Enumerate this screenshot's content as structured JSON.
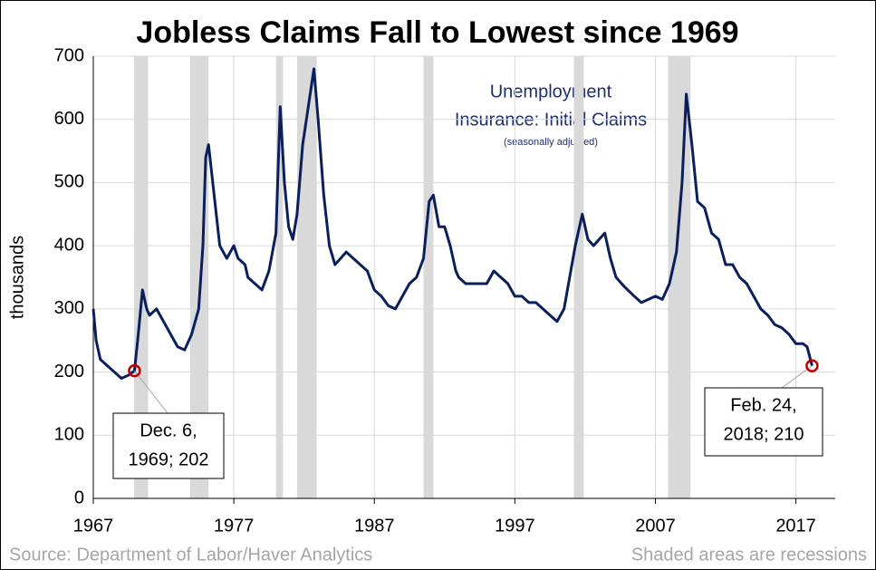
{
  "chart_data": {
    "type": "line",
    "title": "Jobless Claims Fall to Lowest since 1969",
    "ylabel": "thousands",
    "source": "Source: Department of Labor/Haver Analytics",
    "note": "Shaded areas are recessions",
    "series_label": [
      "Unemployment",
      "Insurance: Initial Claims"
    ],
    "series_note": "(seasonally adjusted)",
    "xlim": [
      1967,
      2019.8
    ],
    "ylim": [
      0,
      700
    ],
    "xticks": [
      1967,
      1977,
      1987,
      1997,
      2007,
      2017
    ],
    "yticks": [
      0,
      100,
      200,
      300,
      400,
      500,
      600,
      700
    ],
    "grid": true,
    "recessions": [
      [
        1969.9,
        1970.9
      ],
      [
        1973.9,
        1975.2
      ],
      [
        1980.0,
        1980.5
      ],
      [
        1981.5,
        1982.9
      ],
      [
        1990.5,
        1991.2
      ],
      [
        2001.2,
        2001.9
      ],
      [
        2007.9,
        2009.5
      ]
    ],
    "x": [
      1967.0,
      1967.2,
      1967.5,
      1968.0,
      1968.5,
      1969.0,
      1969.5,
      1969.93,
      1970.2,
      1970.5,
      1970.8,
      1971.0,
      1971.5,
      1972.0,
      1972.5,
      1973.0,
      1973.5,
      1974.0,
      1974.5,
      1974.8,
      1975.0,
      1975.2,
      1975.6,
      1976.0,
      1976.5,
      1977.0,
      1977.3,
      1977.8,
      1978.0,
      1978.5,
      1979.0,
      1979.5,
      1980.0,
      1980.3,
      1980.6,
      1980.9,
      1981.2,
      1981.5,
      1981.9,
      1982.3,
      1982.7,
      1983.0,
      1983.4,
      1983.8,
      1984.2,
      1984.6,
      1985.0,
      1985.5,
      1986.0,
      1986.5,
      1987.0,
      1987.5,
      1988.0,
      1988.5,
      1989.0,
      1989.5,
      1990.0,
      1990.5,
      1990.9,
      1991.2,
      1991.6,
      1992.0,
      1992.4,
      1992.8,
      1993.0,
      1993.5,
      1994.0,
      1994.5,
      1995.0,
      1995.5,
      1996.0,
      1996.5,
      1997.0,
      1997.5,
      1998.0,
      1998.5,
      1999.0,
      1999.5,
      2000.0,
      2000.5,
      2000.9,
      2001.3,
      2001.8,
      2002.2,
      2002.6,
      2003.0,
      2003.4,
      2003.8,
      2004.2,
      2004.8,
      2005.5,
      2006.0,
      2006.5,
      2007.0,
      2007.5,
      2008.0,
      2008.5,
      2008.9,
      2009.2,
      2009.6,
      2010.0,
      2010.5,
      2011.0,
      2011.5,
      2012.0,
      2012.5,
      2013.0,
      2013.5,
      2014.0,
      2014.5,
      2015.0,
      2015.5,
      2016.0,
      2016.5,
      2017.0,
      2017.5,
      2017.8,
      2018.15
    ],
    "series": [
      {
        "name": "Initial Claims",
        "color": "#0b1f5c",
        "values": [
          300,
          250,
          220,
          210,
          200,
          190,
          195,
          202,
          260,
          330,
          300,
          290,
          300,
          280,
          260,
          240,
          235,
          260,
          300,
          400,
          540,
          560,
          480,
          400,
          380,
          400,
          380,
          370,
          350,
          340,
          330,
          360,
          420,
          620,
          500,
          430,
          410,
          450,
          560,
          620,
          680,
          600,
          480,
          400,
          370,
          380,
          390,
          380,
          370,
          360,
          330,
          320,
          305,
          300,
          320,
          340,
          350,
          380,
          470,
          480,
          430,
          430,
          400,
          360,
          350,
          340,
          340,
          340,
          340,
          360,
          350,
          340,
          320,
          320,
          310,
          310,
          300,
          290,
          280,
          300,
          350,
          400,
          450,
          410,
          400,
          410,
          420,
          380,
          350,
          335,
          320,
          310,
          315,
          320,
          315,
          340,
          390,
          500,
          640,
          560,
          470,
          460,
          420,
          410,
          370,
          370,
          350,
          340,
          320,
          300,
          290,
          275,
          270,
          260,
          245,
          245,
          240,
          210
        ]
      }
    ],
    "callouts": [
      {
        "lines": [
          "Dec. 6,",
          "1969; 202"
        ],
        "x": 1969.93,
        "y": 202
      },
      {
        "lines": [
          "Feb. 24,",
          "2018; 210"
        ],
        "x": 2018.15,
        "y": 210
      }
    ]
  }
}
